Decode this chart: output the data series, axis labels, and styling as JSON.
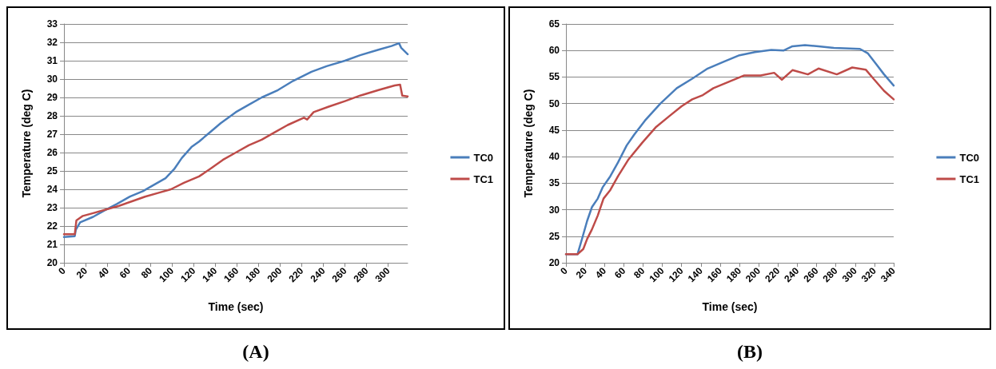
{
  "chart_data": [
    {
      "type": "line",
      "xlabel": "Time (sec)",
      "ylabel": "Temperature (deg C)",
      "annotations": [
        "(A)"
      ],
      "xlim": [
        0,
        318
      ],
      "xticks": [
        0,
        20,
        40,
        60,
        80,
        100,
        120,
        140,
        160,
        180,
        200,
        220,
        240,
        260,
        280,
        300
      ],
      "ylim": [
        20,
        33
      ],
      "yticks": [
        20,
        21,
        22,
        23,
        24,
        25,
        26,
        27,
        28,
        29,
        30,
        31,
        32,
        33
      ],
      "grid": "y",
      "legend": "right",
      "marker": "none",
      "line_style": "solid",
      "series": [
        {
          "name": "TC0",
          "color": "#4a7ebb",
          "x": [
            0,
            10,
            11,
            15,
            27,
            39,
            49,
            61,
            73,
            82,
            94,
            102,
            109,
            118,
            125,
            135,
            145,
            159,
            171,
            183,
            198,
            212,
            229,
            243,
            260,
            274,
            291,
            303,
            310,
            312,
            318
          ],
          "values": [
            21.4,
            21.45,
            21.8,
            22.2,
            22.5,
            22.9,
            23.2,
            23.6,
            23.9,
            24.2,
            24.6,
            25.1,
            25.7,
            26.3,
            26.6,
            27.1,
            27.6,
            28.2,
            28.6,
            29.0,
            29.4,
            29.9,
            30.4,
            30.7,
            31.0,
            31.3,
            31.6,
            31.8,
            31.95,
            31.7,
            31.35
          ]
        },
        {
          "name": "TC1",
          "color": "#be4b48",
          "x": [
            0,
            10,
            11.5,
            17.5,
            27,
            39,
            51,
            63,
            75,
            87,
            99,
            111,
            125,
            135,
            147,
            159,
            171,
            183,
            195,
            207,
            222,
            225,
            231,
            245,
            260,
            274,
            291,
            306,
            311,
            313,
            318
          ],
          "values": [
            21.55,
            21.55,
            22.3,
            22.55,
            22.7,
            22.9,
            23.1,
            23.35,
            23.6,
            23.8,
            24.0,
            24.35,
            24.7,
            25.1,
            25.6,
            26.0,
            26.4,
            26.7,
            27.1,
            27.5,
            27.9,
            27.8,
            28.2,
            28.5,
            28.8,
            29.1,
            29.4,
            29.65,
            29.7,
            29.1,
            29.05
          ]
        }
      ]
    },
    {
      "type": "line",
      "xlabel": "Time (sec)",
      "ylabel": "Temperature (deg C)",
      "annotations": [
        "(B)"
      ],
      "xlim": [
        0,
        340
      ],
      "xticks": [
        0,
        20,
        40,
        60,
        80,
        100,
        120,
        140,
        160,
        180,
        200,
        220,
        240,
        260,
        280,
        300,
        320,
        340
      ],
      "ylim": [
        20,
        65
      ],
      "yticks": [
        20,
        25,
        30,
        35,
        40,
        45,
        50,
        55,
        60,
        65
      ],
      "grid": "y",
      "legend": "right",
      "marker": "none",
      "line_style": "solid",
      "series": [
        {
          "name": "TC0",
          "color": "#4a7ebb",
          "x": [
            0,
            12,
            17,
            22,
            27,
            33,
            38,
            46,
            54,
            63,
            71,
            82,
            98,
            115,
            131,
            147,
            164,
            180,
            196,
            213,
            226,
            235,
            248,
            262,
            278,
            289,
            305,
            313,
            322,
            330,
            340
          ],
          "values": [
            21.6,
            21.6,
            24.7,
            27.9,
            30.5,
            32.1,
            34.2,
            36.3,
            38.9,
            42.1,
            44.2,
            46.8,
            50.0,
            52.9,
            54.7,
            56.6,
            57.9,
            59.1,
            59.7,
            60.1,
            60.0,
            60.8,
            61.0,
            60.8,
            60.5,
            60.4,
            60.3,
            59.5,
            57.4,
            55.5,
            53.4
          ]
        },
        {
          "name": "TC1",
          "color": "#be4b48",
          "x": [
            0,
            12,
            18,
            22,
            27,
            33,
            39,
            46,
            54,
            65,
            79,
            93,
            107,
            120,
            131,
            142,
            153,
            169,
            185,
            202,
            216,
            224,
            235,
            251,
            262,
            281,
            297,
            311,
            319,
            330,
            340
          ],
          "values": [
            21.6,
            21.6,
            22.6,
            24.5,
            26.3,
            28.9,
            32.1,
            33.7,
            36.3,
            39.5,
            42.6,
            45.5,
            47.6,
            49.5,
            50.8,
            51.6,
            52.9,
            54.1,
            55.3,
            55.3,
            55.8,
            54.5,
            56.3,
            55.5,
            56.6,
            55.5,
            56.8,
            56.4,
            54.7,
            52.4,
            50.8
          ]
        }
      ]
    }
  ]
}
